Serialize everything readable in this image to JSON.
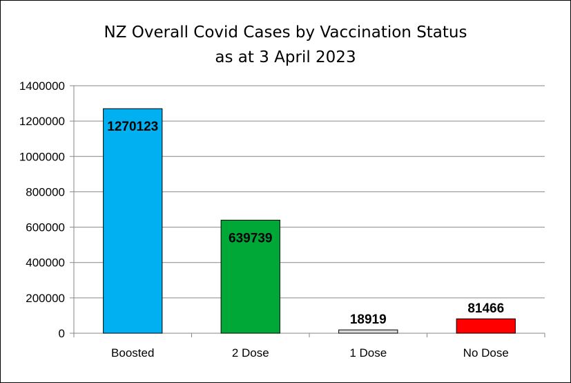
{
  "chart_data": {
    "type": "bar",
    "title_line1": "NZ Overall Covid Cases by Vaccination Status",
    "title_line2": "as at 3 April 2023",
    "categories": [
      "Boosted",
      "2 Dose",
      "1 Dose",
      "No Dose"
    ],
    "values": [
      1270123,
      639739,
      18919,
      81466
    ],
    "colors": [
      "#00b0f0",
      "#00a838",
      "#d9d9d9",
      "#ff0000"
    ],
    "ylim": [
      0,
      1400000
    ],
    "yticks": [
      0,
      200000,
      400000,
      600000,
      800000,
      1000000,
      1200000,
      1400000
    ],
    "grid": true,
    "legend": "none"
  }
}
